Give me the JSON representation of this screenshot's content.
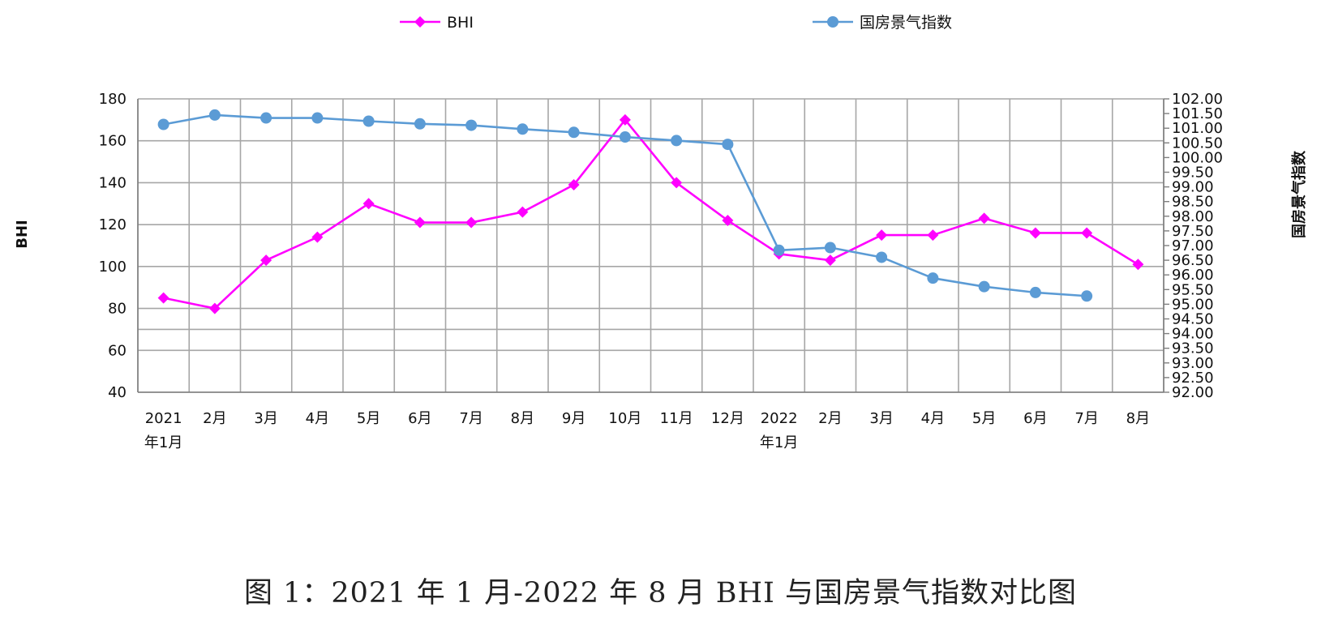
{
  "chart_data": {
    "type": "line",
    "title": "",
    "categories": [
      [
        "2021",
        "年1月"
      ],
      [
        "2月"
      ],
      [
        "3月"
      ],
      [
        "4月"
      ],
      [
        "5月"
      ],
      [
        "6月"
      ],
      [
        "7月"
      ],
      [
        "8月"
      ],
      [
        "9月"
      ],
      [
        "10月"
      ],
      [
        "11月"
      ],
      [
        "12月"
      ],
      [
        "2022",
        "年1月"
      ],
      [
        "2月"
      ],
      [
        "3月"
      ],
      [
        "4月"
      ],
      [
        "5月"
      ],
      [
        "6月"
      ],
      [
        "7月"
      ],
      [
        "8月"
      ]
    ],
    "series": [
      {
        "name": "BHI",
        "axis": "left",
        "color": "#ff00ff",
        "marker": "diamond",
        "values": [
          85,
          80,
          103,
          114,
          130,
          121,
          121,
          126,
          139,
          170,
          140,
          122,
          106,
          103,
          115,
          115,
          123,
          116,
          116,
          101
        ]
      },
      {
        "name": "国房景气指数",
        "axis": "right",
        "color": "#5b9bd5",
        "marker": "circle",
        "values": [
          101.13,
          101.45,
          101.35,
          101.35,
          101.24,
          101.15,
          101.1,
          100.97,
          100.86,
          100.7,
          100.58,
          100.45,
          96.84,
          96.93,
          96.6,
          95.89,
          95.6,
          95.4,
          95.28,
          null
        ]
      }
    ],
    "y_left": {
      "label": "BHI",
      "min": 40,
      "max": 180,
      "ticks": [
        "40",
        "60",
        "80",
        "100",
        "120",
        "140",
        "160",
        "180"
      ]
    },
    "y_right": {
      "label": "国房景气指数",
      "min": 92,
      "max": 102,
      "ticks": [
        "92.00",
        "92.50",
        "93.00",
        "93.50",
        "94.00",
        "94.50",
        "95.00",
        "95.50",
        "96.00",
        "96.50",
        "97.00",
        "97.50",
        "98.00",
        "98.50",
        "99.00",
        "99.50",
        "100.00",
        "100.50",
        "101.00",
        "101.50",
        "102.00"
      ]
    },
    "grid": true,
    "legend_position": "top"
  },
  "caption": "图 1：2021 年 1 月-2022 年 8 月 BHI 与国房景气指数对比图"
}
